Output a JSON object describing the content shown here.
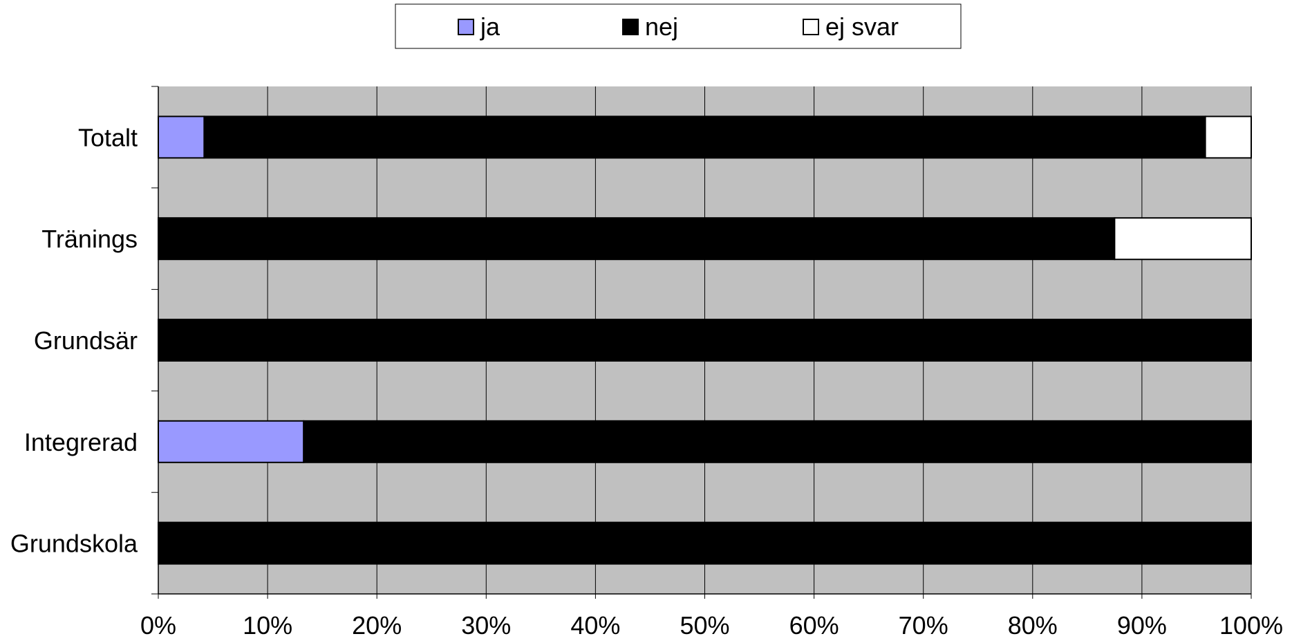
{
  "chart_data": {
    "type": "bar",
    "orientation": "horizontal",
    "stacked": "percent",
    "categories": [
      "Totalt",
      "Tränings",
      "Grundsär",
      "Integrerad",
      "Grundskola"
    ],
    "series": [
      {
        "name": "ja",
        "values": [
          4.2,
          0,
          0,
          13.3,
          0
        ],
        "color": "#9999ff"
      },
      {
        "name": "nej",
        "values": [
          91.6,
          87.5,
          100,
          86.7,
          100
        ],
        "color": "#000000"
      },
      {
        "name": "ej svar",
        "values": [
          4.2,
          12.5,
          0,
          0,
          0
        ],
        "color": "#ffffff"
      }
    ],
    "x_ticks": [
      "0%",
      "10%",
      "20%",
      "30%",
      "40%",
      "50%",
      "60%",
      "70%",
      "80%",
      "90%",
      "100%"
    ],
    "xlim": [
      0,
      100
    ],
    "grid": true,
    "legend_position": "top",
    "plot_background": "#c0c0c0"
  }
}
